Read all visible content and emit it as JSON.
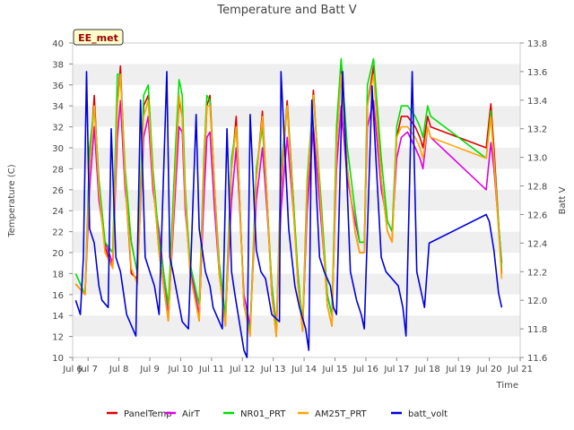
{
  "chart_data": {
    "type": "line",
    "title": "Temperature and Batt V",
    "xlabel": "Time",
    "ylabel_left": "Temperature (C)",
    "ylabel_right": "Batt V",
    "badge": "EE_met",
    "grid": "horizontal bands",
    "legend_placement": "bottom",
    "x_ticks": [
      6.5,
      7,
      8,
      9,
      10,
      11,
      12,
      13,
      14,
      15,
      16,
      17,
      18,
      19,
      20,
      21
    ],
    "x_tick_labels": [
      "Jul 6",
      "Jul 7",
      "Jul 8",
      "Jul 9",
      "Jul 10",
      "Jul 11",
      "Jul 12",
      "Jul 13",
      "Jul 14",
      "Jul 15",
      "Jul 16",
      "Jul 17",
      "Jul 18",
      "Jul 19",
      "Jul 20",
      "Jul 21"
    ],
    "xlim": [
      6.5,
      21
    ],
    "ylim_left": [
      10,
      40
    ],
    "y_ticks_left": [
      10,
      12,
      14,
      16,
      18,
      20,
      22,
      24,
      26,
      28,
      30,
      32,
      34,
      36,
      38,
      40
    ],
    "ylim_right": [
      11.6,
      13.8
    ],
    "y_ticks_right": [
      11.6,
      11.8,
      12.0,
      12.2,
      12.4,
      12.6,
      12.8,
      13.0,
      13.2,
      13.4,
      13.6,
      13.8
    ],
    "series": [
      {
        "name": "PanelTemp",
        "color": "#e00000",
        "axis": "left",
        "x": [
          6.6,
          6.9,
          7.05,
          7.2,
          7.35,
          7.55,
          7.8,
          7.95,
          8.05,
          8.2,
          8.4,
          8.6,
          8.8,
          8.95,
          9.1,
          9.3,
          9.6,
          9.85,
          9.95,
          10.05,
          10.15,
          10.3,
          10.6,
          10.75,
          10.85,
          10.95,
          11.1,
          11.25,
          11.45,
          11.65,
          11.8,
          11.9,
          12.05,
          12.25,
          12.45,
          12.65,
          12.8,
          12.95,
          13.1,
          13.25,
          13.45,
          13.65,
          13.8,
          13.95,
          14.1,
          14.3,
          14.55,
          14.75,
          14.9,
          15.05,
          15.2,
          15.4,
          15.65,
          15.8,
          15.95,
          16.05,
          16.25,
          16.5,
          16.7,
          16.85,
          17.0,
          17.15,
          17.35,
          17.6,
          17.75,
          17.85,
          18.0,
          18.1,
          19.9,
          20.05,
          20.15,
          20.4
        ],
        "y": [
          17.0,
          16.0,
          28.0,
          35.0,
          26.0,
          20.5,
          18.5,
          34.0,
          37.8,
          27.0,
          18.0,
          17.5,
          34.0,
          35.0,
          27.0,
          20.0,
          13.5,
          29.0,
          34.5,
          33.0,
          25.0,
          18.5,
          13.5,
          27.0,
          34.0,
          35.0,
          26.0,
          18.0,
          13.0,
          28.0,
          33.0,
          26.0,
          15.0,
          12.5,
          27.0,
          33.5,
          25.0,
          16.0,
          12.0,
          26.0,
          34.5,
          25.0,
          17.0,
          12.5,
          25.0,
          35.5,
          24.0,
          15.0,
          13.0,
          30.0,
          37.5,
          28.0,
          22.0,
          20.0,
          20.0,
          34.0,
          37.8,
          27.0,
          22.0,
          21.0,
          31.0,
          33.0,
          33.0,
          32.0,
          31.0,
          30.0,
          33.0,
          32.0,
          30.0,
          34.2,
          30.0,
          18.0
        ]
      },
      {
        "name": "AirT",
        "color": "#e000e0",
        "axis": "left",
        "x": [
          6.6,
          6.9,
          7.05,
          7.2,
          7.35,
          7.55,
          7.8,
          7.95,
          8.05,
          8.2,
          8.4,
          8.6,
          8.8,
          8.95,
          9.1,
          9.3,
          9.6,
          9.85,
          9.95,
          10.05,
          10.15,
          10.3,
          10.6,
          10.75,
          10.85,
          10.95,
          11.1,
          11.25,
          11.45,
          11.65,
          11.8,
          11.9,
          12.05,
          12.25,
          12.45,
          12.65,
          12.8,
          12.95,
          13.1,
          13.25,
          13.45,
          13.65,
          13.8,
          13.95,
          14.1,
          14.3,
          14.55,
          14.75,
          14.9,
          15.05,
          15.2,
          15.4,
          15.65,
          15.8,
          15.95,
          16.05,
          16.25,
          16.5,
          16.7,
          16.85,
          17.0,
          17.15,
          17.35,
          17.6,
          17.75,
          17.85,
          18.0,
          18.1,
          19.9,
          20.05,
          20.15,
          20.4
        ],
        "y": [
          17.0,
          16.0,
          26.0,
          32.0,
          25.0,
          21.0,
          19.0,
          31.0,
          34.5,
          26.0,
          21.0,
          18.0,
          31.0,
          33.0,
          26.0,
          22.0,
          14.0,
          27.0,
          32.0,
          31.5,
          24.0,
          19.0,
          14.0,
          25.0,
          31.0,
          31.5,
          24.0,
          18.0,
          14.0,
          25.0,
          30.0,
          25.0,
          16.0,
          13.0,
          25.0,
          30.0,
          24.0,
          17.0,
          13.0,
          24.0,
          31.0,
          24.0,
          18.0,
          13.0,
          24.0,
          32.0,
          23.0,
          16.0,
          14.0,
          28.0,
          34.0,
          27.0,
          23.0,
          21.0,
          21.0,
          32.0,
          34.5,
          26.0,
          23.0,
          22.0,
          29.0,
          31.0,
          31.5,
          30.0,
          29.0,
          28.0,
          32.0,
          31.0,
          26.0,
          30.5,
          28.0,
          19.0
        ]
      },
      {
        "name": "NR01_PRT",
        "color": "#00e000",
        "axis": "left",
        "x": [
          6.6,
          6.9,
          7.05,
          7.2,
          7.35,
          7.55,
          7.8,
          7.95,
          8.05,
          8.2,
          8.4,
          8.6,
          8.8,
          8.95,
          9.1,
          9.3,
          9.6,
          9.85,
          9.95,
          10.05,
          10.15,
          10.3,
          10.6,
          10.75,
          10.85,
          10.95,
          11.1,
          11.25,
          11.45,
          11.65,
          11.8,
          11.9,
          12.05,
          12.25,
          12.45,
          12.65,
          12.8,
          12.95,
          13.1,
          13.25,
          13.45,
          13.65,
          13.8,
          13.95,
          14.1,
          14.3,
          14.55,
          14.75,
          14.9,
          15.05,
          15.2,
          15.4,
          15.65,
          15.8,
          15.95,
          16.05,
          16.25,
          16.5,
          16.7,
          16.85,
          17.0,
          17.15,
          17.35,
          17.6,
          17.75,
          17.85,
          18.0,
          18.1,
          19.9,
          20.05,
          20.15,
          20.4
        ],
        "y": [
          18.0,
          16.0,
          30.0,
          34.0,
          27.0,
          21.0,
          20.0,
          37.0,
          37.0,
          28.0,
          21.0,
          18.0,
          35.0,
          36.0,
          28.0,
          21.0,
          15.0,
          31.0,
          36.5,
          35.0,
          26.0,
          19.0,
          15.0,
          29.0,
          35.0,
          34.5,
          26.0,
          19.0,
          14.0,
          29.0,
          32.0,
          26.0,
          15.0,
          12.5,
          28.0,
          32.0,
          25.0,
          17.0,
          12.5,
          28.0,
          34.0,
          25.0,
          18.0,
          13.0,
          27.0,
          35.0,
          25.0,
          16.0,
          14.0,
          32.0,
          38.5,
          30.0,
          24.0,
          21.0,
          21.0,
          36.0,
          38.5,
          29.0,
          23.0,
          22.0,
          32.0,
          34.0,
          34.0,
          33.0,
          32.0,
          31.0,
          34.0,
          33.0,
          29.0,
          33.5,
          29.0,
          18.5
        ]
      },
      {
        "name": "AM25T_PRT",
        "color": "#ffa500",
        "axis": "left",
        "x": [
          6.6,
          6.9,
          7.05,
          7.2,
          7.35,
          7.55,
          7.8,
          7.95,
          8.05,
          8.2,
          8.4,
          8.6,
          8.8,
          8.95,
          9.1,
          9.3,
          9.6,
          9.85,
          9.95,
          10.05,
          10.15,
          10.3,
          10.6,
          10.75,
          10.85,
          10.95,
          11.1,
          11.25,
          11.45,
          11.65,
          11.8,
          11.9,
          12.05,
          12.25,
          12.45,
          12.65,
          12.8,
          12.95,
          13.1,
          13.25,
          13.45,
          13.65,
          13.8,
          13.95,
          14.1,
          14.3,
          14.55,
          14.75,
          14.9,
          15.05,
          15.2,
          15.4,
          15.65,
          15.8,
          15.95,
          16.05,
          16.25,
          16.5,
          16.7,
          16.85,
          17.0,
          17.15,
          17.35,
          17.6,
          17.75,
          17.85,
          18.0,
          18.1,
          19.9,
          20.05,
          20.15,
          20.4
        ],
        "y": [
          17.0,
          16.0,
          28.0,
          34.0,
          26.0,
          20.0,
          18.5,
          34.0,
          37.0,
          27.0,
          18.5,
          17.0,
          33.0,
          34.5,
          27.0,
          20.0,
          13.5,
          29.0,
          35.0,
          33.0,
          25.0,
          18.0,
          13.5,
          28.0,
          34.0,
          34.0,
          26.0,
          18.0,
          13.0,
          28.0,
          32.0,
          26.0,
          15.0,
          12.0,
          27.0,
          33.0,
          25.0,
          16.0,
          12.0,
          27.0,
          34.0,
          24.0,
          17.0,
          12.5,
          26.0,
          35.0,
          24.0,
          15.0,
          13.0,
          30.0,
          37.0,
          28.0,
          22.0,
          20.0,
          20.0,
          34.0,
          37.0,
          27.0,
          22.0,
          21.0,
          31.0,
          32.0,
          32.0,
          31.0,
          30.0,
          29.0,
          32.0,
          31.0,
          29.0,
          33.0,
          29.0,
          17.5
        ]
      },
      {
        "name": "batt_volt",
        "color": "#0000dd",
        "axis": "right",
        "x": [
          6.6,
          6.75,
          6.85,
          6.95,
          7.05,
          7.2,
          7.35,
          7.45,
          7.65,
          7.75,
          7.9,
          8.05,
          8.25,
          8.55,
          8.7,
          8.85,
          9.0,
          9.15,
          9.3,
          9.55,
          9.65,
          9.75,
          10.05,
          10.25,
          10.5,
          10.6,
          10.8,
          10.95,
          11.05,
          11.35,
          11.5,
          11.65,
          11.75,
          11.9,
          12.05,
          12.15,
          12.25,
          12.45,
          12.6,
          12.75,
          12.95,
          13.2,
          13.25,
          13.5,
          13.7,
          13.85,
          14.05,
          14.15,
          14.25,
          14.5,
          14.65,
          14.85,
          14.95,
          15.05,
          15.25,
          15.5,
          15.7,
          15.85,
          15.95,
          16.2,
          16.5,
          16.65,
          16.85,
          17.05,
          17.2,
          17.3,
          17.5,
          17.65,
          17.8,
          17.9,
          18.05,
          19.9,
          20.0,
          20.15,
          20.3,
          20.4
        ],
        "y": [
          12.0,
          11.9,
          12.3,
          13.6,
          12.5,
          12.4,
          12.1,
          12.0,
          11.95,
          13.2,
          12.3,
          12.2,
          11.9,
          11.75,
          13.4,
          12.3,
          12.2,
          12.1,
          11.9,
          13.6,
          12.3,
          12.2,
          11.85,
          11.8,
          13.3,
          12.5,
          12.2,
          12.1,
          11.95,
          11.8,
          13.2,
          12.2,
          12.05,
          11.85,
          11.65,
          11.6,
          13.3,
          12.35,
          12.2,
          12.15,
          11.9,
          11.85,
          13.6,
          12.5,
          12.1,
          11.95,
          11.8,
          11.65,
          13.4,
          12.3,
          12.2,
          12.1,
          11.95,
          11.9,
          13.6,
          12.2,
          12.0,
          11.9,
          11.8,
          13.5,
          12.3,
          12.2,
          12.15,
          12.1,
          11.95,
          11.75,
          13.6,
          12.2,
          12.05,
          11.95,
          12.4,
          12.6,
          12.55,
          12.35,
          12.05,
          11.95
        ]
      }
    ]
  }
}
